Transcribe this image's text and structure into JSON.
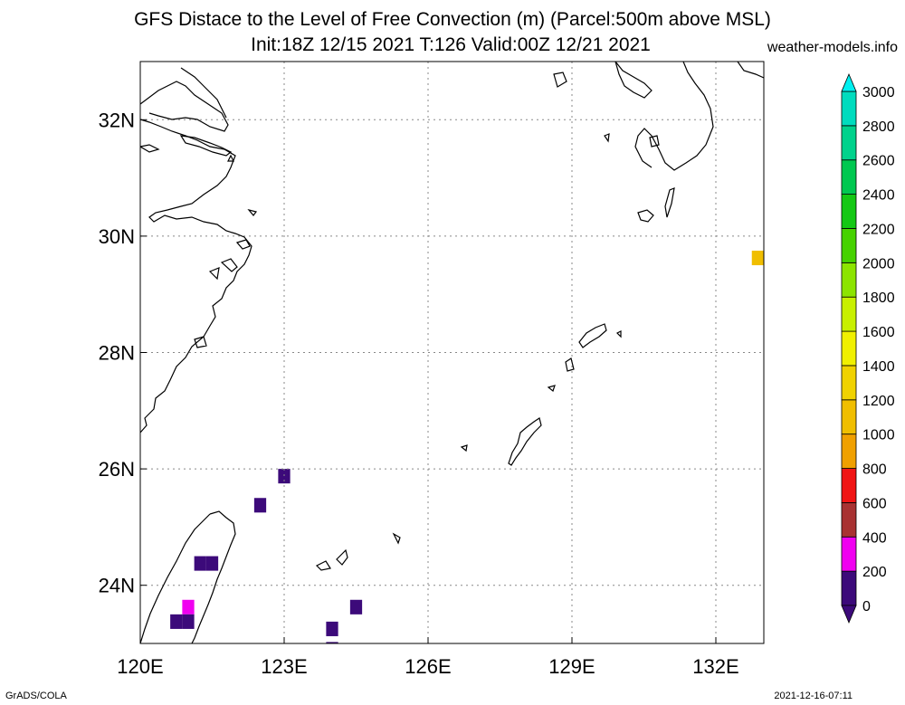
{
  "title_line1": "GFS Distace to the Level of Free Convection (m) (Parcel:500m above MSL)",
  "title_line2": "Init:18Z 12/15 2021 T:126 Valid:00Z 12/21 2021",
  "site": "weather-models.info",
  "footer_left": "GrADS/COLA",
  "footer_right": "2021-12-16-07:11",
  "map": {
    "lon_range": [
      120,
      133
    ],
    "lat_range": [
      23,
      33
    ],
    "lon_ticks": [
      "120E",
      "123E",
      "126E",
      "129E",
      "132E"
    ],
    "lat_ticks": [
      "24N",
      "26N",
      "28N",
      "30N",
      "32N"
    ],
    "grid": "dotted"
  },
  "colorbar": {
    "levels": [
      "0",
      "200",
      "400",
      "600",
      "800",
      "1000",
      "1200",
      "1400",
      "1600",
      "1800",
      "2000",
      "2200",
      "2400",
      "2600",
      "2800",
      "3000"
    ],
    "colors": [
      "#3c0a7a",
      "#f000f0",
      "#a83232",
      "#f01414",
      "#f0a000",
      "#f0be00",
      "#f0d200",
      "#f0f000",
      "#c8f000",
      "#8ce400",
      "#46d200",
      "#14c814",
      "#00c850",
      "#00d28c",
      "#00dcbe",
      "#00e6e6"
    ],
    "min_color": "#3c0a7a",
    "max_color": "#00f0f0"
  },
  "field_cells": [
    {
      "lon": 123.0,
      "lat": 25.875,
      "value": 50
    },
    {
      "lon": 122.5,
      "lat": 25.375,
      "value": 50
    },
    {
      "lon": 121.5,
      "lat": 24.375,
      "value": 50
    },
    {
      "lon": 121.25,
      "lat": 24.375,
      "value": 150
    },
    {
      "lon": 121.0,
      "lat": 23.625,
      "value": 250
    },
    {
      "lon": 121.0,
      "lat": 23.375,
      "value": 150
    },
    {
      "lon": 120.75,
      "lat": 23.375,
      "value": 150
    },
    {
      "lon": 124.0,
      "lat": 23.25,
      "value": 150
    },
    {
      "lon": 124.5,
      "lat": 23.625,
      "value": 150
    },
    {
      "lon": 124.0,
      "lat": 22.9,
      "value": 50
    },
    {
      "lon": 132.875,
      "lat": 29.625,
      "value": 1050
    }
  ]
}
